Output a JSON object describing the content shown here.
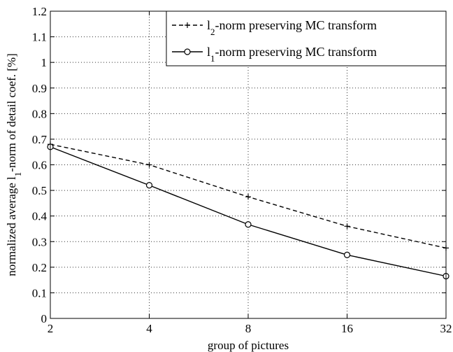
{
  "chart_data": {
    "type": "line",
    "x": [
      2,
      4,
      8,
      16,
      32
    ],
    "x_scale": "log2",
    "xlim": [
      2,
      32
    ],
    "ylim": [
      0,
      1.2
    ],
    "x_ticks": [
      "2",
      "4",
      "8",
      "16",
      "32"
    ],
    "y_ticks": [
      "0",
      "0.1",
      "0.2",
      "0.3",
      "0.4",
      "0.5",
      "0.6",
      "0.7",
      "0.8",
      "0.9",
      "1",
      "1.1",
      "1.2"
    ],
    "xlabel": "group of pictures",
    "ylabel": {
      "pre": "normalized average l",
      "sub": "1",
      "post": "-norm of detail coef. [%]"
    },
    "grid": true,
    "legend_position": "top-right",
    "series": [
      {
        "name": {
          "pre": "l",
          "sub": "2",
          "post": "-norm preserving MC transform"
        },
        "values": [
          0.68,
          0.6,
          0.475,
          0.36,
          0.275
        ],
        "line_style": "dashed",
        "marker": "plus",
        "color": "#000000"
      },
      {
        "name": {
          "pre": "l",
          "sub": "1",
          "post": "-norm preserving MC transform"
        },
        "values": [
          0.67,
          0.52,
          0.367,
          0.248,
          0.165
        ],
        "line_style": "solid",
        "marker": "circle",
        "color": "#000000"
      }
    ]
  }
}
